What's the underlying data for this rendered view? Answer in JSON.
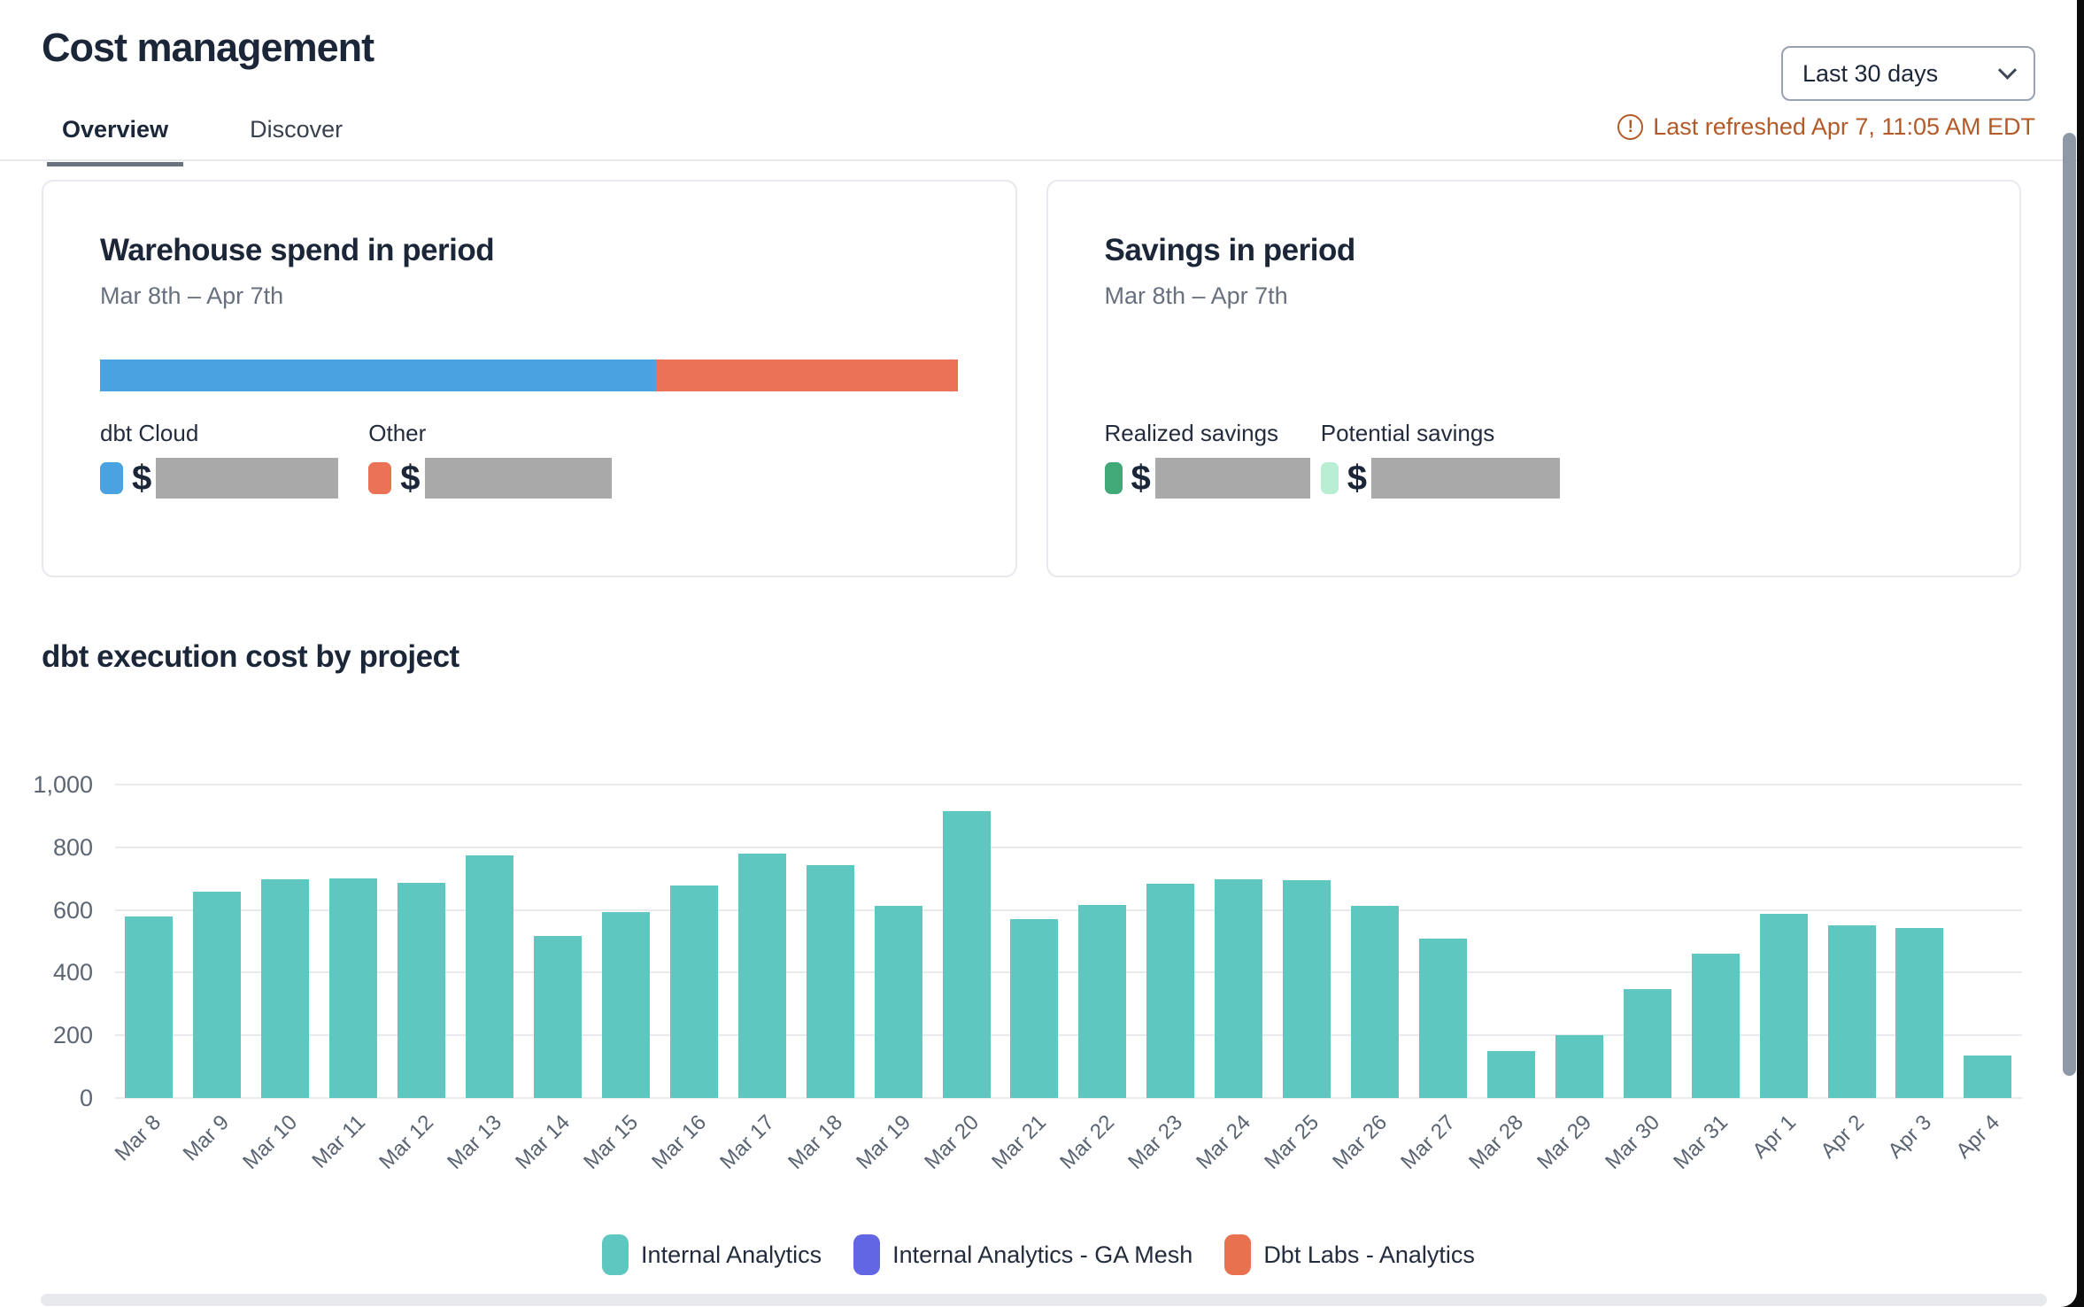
{
  "header": {
    "title": "Cost management",
    "date_range_selector": "Last 30 days",
    "last_refreshed": "Last refreshed Apr 7, 11:05 AM EDT",
    "warning_color": "#b25a28",
    "tabs": [
      {
        "label": "Overview",
        "active": true
      },
      {
        "label": "Discover",
        "active": false
      }
    ]
  },
  "cards": {
    "warehouse_spend": {
      "title": "Warehouse spend in period",
      "subtitle": "Mar 8th – Apr 7th",
      "currency_symbol": "$",
      "values_redacted": true,
      "segments": [
        {
          "label": "dbt Cloud",
          "color": "#4aa2e0",
          "percent": 64.8
        },
        {
          "label": "Other",
          "color": "#ec7257",
          "percent": 35.2
        }
      ]
    },
    "savings": {
      "title": "Savings in period",
      "subtitle": "Mar 8th – Apr 7th",
      "currency_symbol": "$",
      "values_redacted": true,
      "items": [
        {
          "label": "Realized savings",
          "color": "#41a877"
        },
        {
          "label": "Potential savings",
          "color": "#b8eed3"
        }
      ]
    }
  },
  "chart_data": {
    "type": "bar",
    "title": "dbt execution cost by project",
    "xlabel": "",
    "ylabel": "",
    "ylim": [
      0,
      1000
    ],
    "grid": true,
    "legend_position": "bottom",
    "y_ticks": [
      "1,000",
      "800",
      "600",
      "400",
      "200",
      "0"
    ],
    "categories": [
      "Mar 8",
      "Mar 9",
      "Mar 10",
      "Mar 11",
      "Mar 12",
      "Mar 13",
      "Mar 14",
      "Mar 15",
      "Mar 16",
      "Mar 17",
      "Mar 18",
      "Mar 19",
      "Mar 20",
      "Mar 21",
      "Mar 22",
      "Mar 23",
      "Mar 24",
      "Mar 25",
      "Mar 26",
      "Mar 27",
      "Mar 28",
      "Mar 29",
      "Mar 30",
      "Mar 31",
      "Apr 1",
      "Apr 2",
      "Apr 3",
      "Apr 4"
    ],
    "series": [
      {
        "name": "Internal Analytics",
        "color": "#5ec7c0",
        "values": [
          580,
          658,
          698,
          700,
          686,
          775,
          517,
          592,
          678,
          780,
          742,
          613,
          915,
          572,
          617,
          684,
          698,
          696,
          612,
          508,
          150,
          200,
          348,
          460,
          588,
          551,
          542,
          136
        ]
      }
    ],
    "legend": [
      {
        "label": "Internal Analytics",
        "color": "#5ec7c0"
      },
      {
        "label": "Internal Analytics - GA Mesh",
        "color": "#6266e4"
      },
      {
        "label": "Dbt Labs - Analytics",
        "color": "#e8714f"
      }
    ]
  }
}
